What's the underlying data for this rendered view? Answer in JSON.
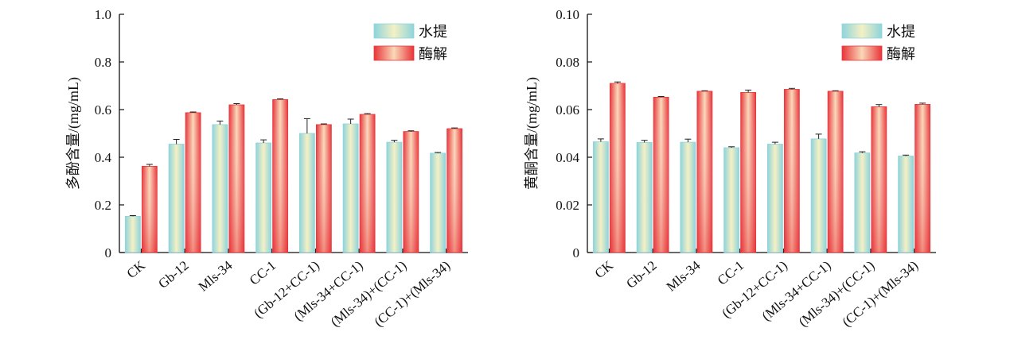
{
  "chart_data": [
    {
      "type": "bar",
      "ylabel": "多酚含量/(mg/mL)",
      "xlabel": "",
      "ylim": [
        0,
        1.0
      ],
      "yticks": [
        "0",
        "0.2",
        "0.4",
        "0.6",
        "0.8",
        "1.0"
      ],
      "ytick_values": [
        0,
        0.2,
        0.4,
        0.6,
        0.8,
        1.0
      ],
      "categories": [
        "CK",
        "Gb-12",
        "Mls-34",
        "CC-1",
        "(Gb-12+CC-1)",
        "(Mls-34+CC-1)",
        "(Mls-34)+(CC-1)",
        "(CC-1)+(Mls-34)"
      ],
      "series": [
        {
          "name": "水提",
          "values": [
            0.152,
            0.455,
            0.537,
            0.46,
            0.5,
            0.54,
            0.463,
            0.417
          ],
          "errors": [
            0.003,
            0.02,
            0.015,
            0.013,
            0.062,
            0.02,
            0.008,
            0.003
          ]
        },
        {
          "name": "酶解",
          "values": [
            0.362,
            0.587,
            0.62,
            0.642,
            0.537,
            0.58,
            0.508,
            0.52
          ],
          "errors": [
            0.008,
            0.003,
            0.005,
            0.003,
            0.003,
            0.003,
            0.003,
            0.003
          ]
        }
      ],
      "legend_position": "top-right",
      "grid": false
    },
    {
      "type": "bar",
      "ylabel": "黄酮含量/(mg/mL)",
      "xlabel": "",
      "ylim": [
        0,
        0.1
      ],
      "yticks": [
        "0",
        "0.02",
        "0.04",
        "0.06",
        "0.08",
        "0.10"
      ],
      "ytick_values": [
        0,
        0.02,
        0.04,
        0.06,
        0.08,
        0.1
      ],
      "categories": [
        "CK",
        "Gb-12",
        "Mls-34",
        "CC-1",
        "(Gb-12+CC-1)",
        "(Mls-34+CC-1)",
        "(Mls-34)+(CC-1)",
        "(CC-1)+(Mls-34)"
      ],
      "series": [
        {
          "name": "水提",
          "values": [
            0.0465,
            0.0462,
            0.0463,
            0.044,
            0.0455,
            0.0477,
            0.0418,
            0.0405
          ],
          "errors": [
            0.0012,
            0.0009,
            0.0013,
            0.0004,
            0.0008,
            0.002,
            0.0005,
            0.0004
          ]
        },
        {
          "name": "酶解",
          "values": [
            0.071,
            0.0652,
            0.0677,
            0.0672,
            0.0685,
            0.0677,
            0.0612,
            0.0622
          ],
          "errors": [
            0.0006,
            0.0003,
            0.0002,
            0.001,
            0.0004,
            0.0002,
            0.0009,
            0.0005
          ]
        }
      ],
      "legend_position": "top-right",
      "grid": false
    }
  ],
  "colors": {
    "water_center": "#f4f0c4",
    "water_edge": "#8fd4dc",
    "enzyme_center": "#fad8b8",
    "enzyme_edge": "#e8343a",
    "axis": "#111111"
  }
}
